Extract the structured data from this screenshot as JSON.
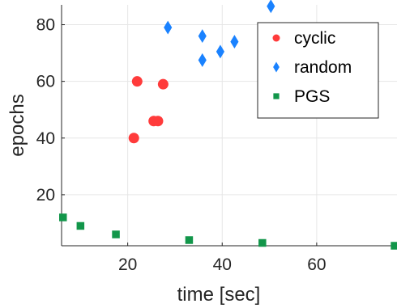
{
  "chart_data": {
    "type": "scatter",
    "title": "",
    "xlabel": "time [sec]",
    "ylabel": "epochs",
    "xlim": [
      6,
      77
    ],
    "ylim": [
      2,
      87
    ],
    "xticks": [
      20,
      40,
      60
    ],
    "yticks": [
      20,
      40,
      60,
      80
    ],
    "grid": true,
    "legend_position": "top-right",
    "series": [
      {
        "name": "cyclic",
        "marker": "circle",
        "color": "#ff3b3b",
        "points": [
          {
            "x": 21.3,
            "y": 40
          },
          {
            "x": 22.0,
            "y": 60
          },
          {
            "x": 25.5,
            "y": 46
          },
          {
            "x": 26.4,
            "y": 46
          },
          {
            "x": 27.5,
            "y": 59
          }
        ]
      },
      {
        "name": "random",
        "marker": "diamond",
        "color": "#1a82ff",
        "points": [
          {
            "x": 28.5,
            "y": 79
          },
          {
            "x": 35.8,
            "y": 76
          },
          {
            "x": 35.8,
            "y": 67.5
          },
          {
            "x": 39.6,
            "y": 70.5
          },
          {
            "x": 42.6,
            "y": 74
          },
          {
            "x": 50.3,
            "y": 86.5
          }
        ]
      },
      {
        "name": "PGS",
        "marker": "square",
        "color": "#12964a",
        "points": [
          {
            "x": 6.3,
            "y": 12
          },
          {
            "x": 10.0,
            "y": 9
          },
          {
            "x": 17.5,
            "y": 6
          },
          {
            "x": 33.0,
            "y": 4
          },
          {
            "x": 48.5,
            "y": 3
          },
          {
            "x": 76.5,
            "y": 2
          }
        ]
      }
    ]
  }
}
